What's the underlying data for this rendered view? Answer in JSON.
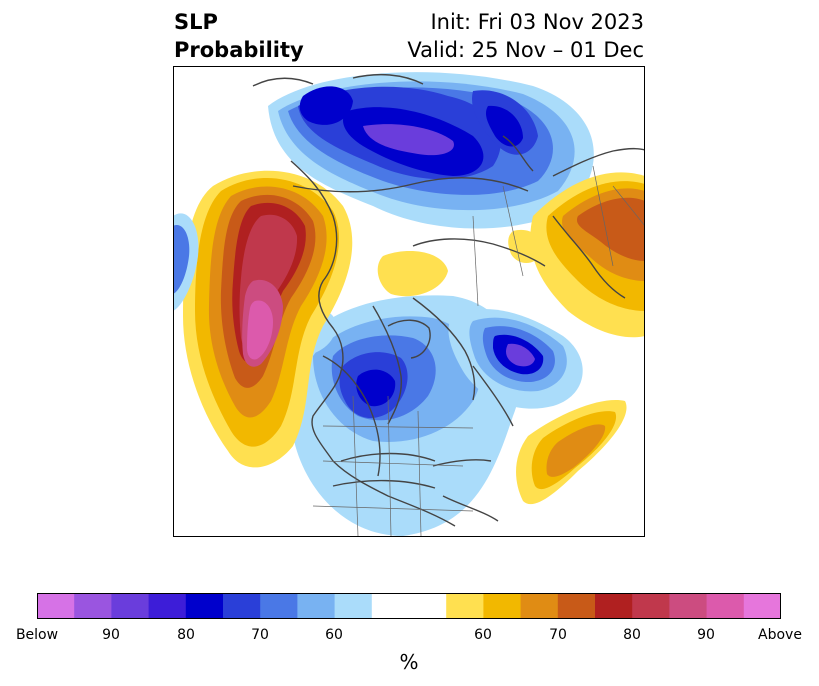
{
  "title": {
    "left_line1": "SLP",
    "left_line2": "Probability",
    "right_line1": "Init: Fri 03 Nov 2023",
    "right_line2": "Valid: 25 Nov – 01 Dec"
  },
  "colorbar": {
    "unit": "%",
    "colors": [
      "#d672e6",
      "#9a55e0",
      "#6a3ddc",
      "#3d1dd8",
      "#0000cc",
      "#2a3fd8",
      "#4a78e6",
      "#78b2f2",
      "#aadcfa",
      "#ffffff",
      "#ffffff",
      "#ffe050",
      "#f2b800",
      "#e08c14",
      "#c85a18",
      "#b02020",
      "#c0384c",
      "#cc4c80",
      "#dc5aac",
      "#e676dc"
    ],
    "tick_labels": [
      "Below",
      "90",
      "80",
      "70",
      "60",
      "60",
      "70",
      "80",
      "90",
      "Above"
    ]
  }
}
